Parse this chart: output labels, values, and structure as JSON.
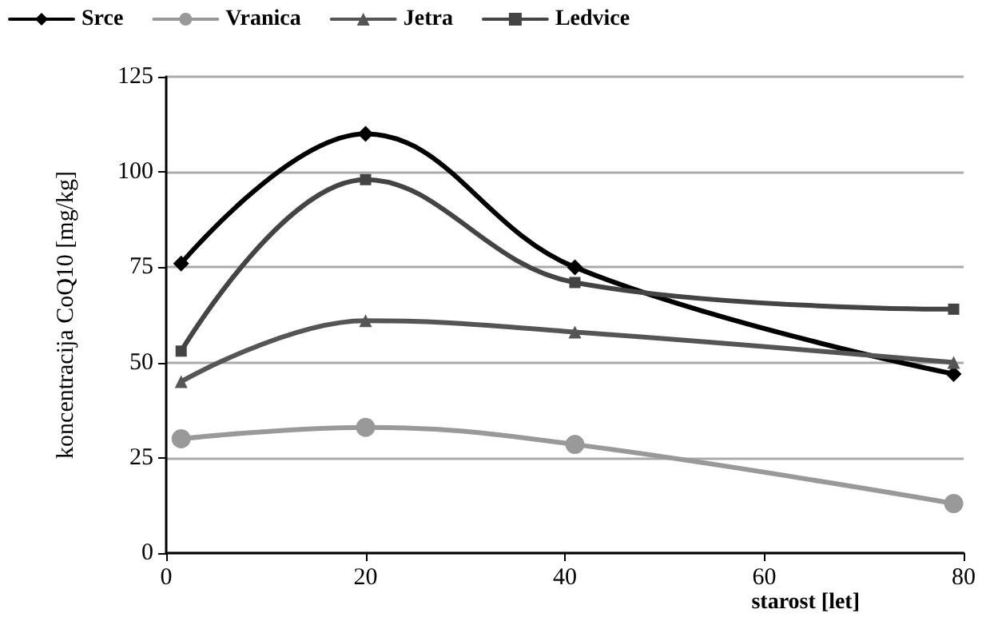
{
  "chart_data": {
    "type": "line",
    "xlabel": "starost [let]",
    "ylabel": "koncentracija CoQ10 [mg/kg]",
    "xlim": [
      0,
      80
    ],
    "xticks": [
      0,
      20,
      40,
      60,
      80
    ],
    "ylim": [
      0,
      125
    ],
    "yticks": [
      0,
      25,
      50,
      75,
      100,
      125
    ],
    "grid": "y",
    "legend": "top",
    "series": [
      {
        "name": "Srce",
        "color": "#000000",
        "marker": "diamond",
        "x": [
          1.5,
          20,
          41,
          79
        ],
        "values": [
          76,
          110,
          75,
          47
        ]
      },
      {
        "name": "Vranica",
        "color": "#999999",
        "marker": "circle",
        "x": [
          1.5,
          20,
          41,
          79
        ],
        "values": [
          30,
          33,
          28.5,
          13
        ]
      },
      {
        "name": "Jetra",
        "color": "#555555",
        "marker": "triangle",
        "x": [
          1.5,
          20,
          41,
          79
        ],
        "values": [
          45,
          61,
          58,
          50
        ]
      },
      {
        "name": "Ledvice",
        "color": "#444444",
        "marker": "square",
        "x": [
          1.5,
          20,
          41,
          79
        ],
        "values": [
          53,
          98,
          71,
          64
        ]
      }
    ]
  }
}
